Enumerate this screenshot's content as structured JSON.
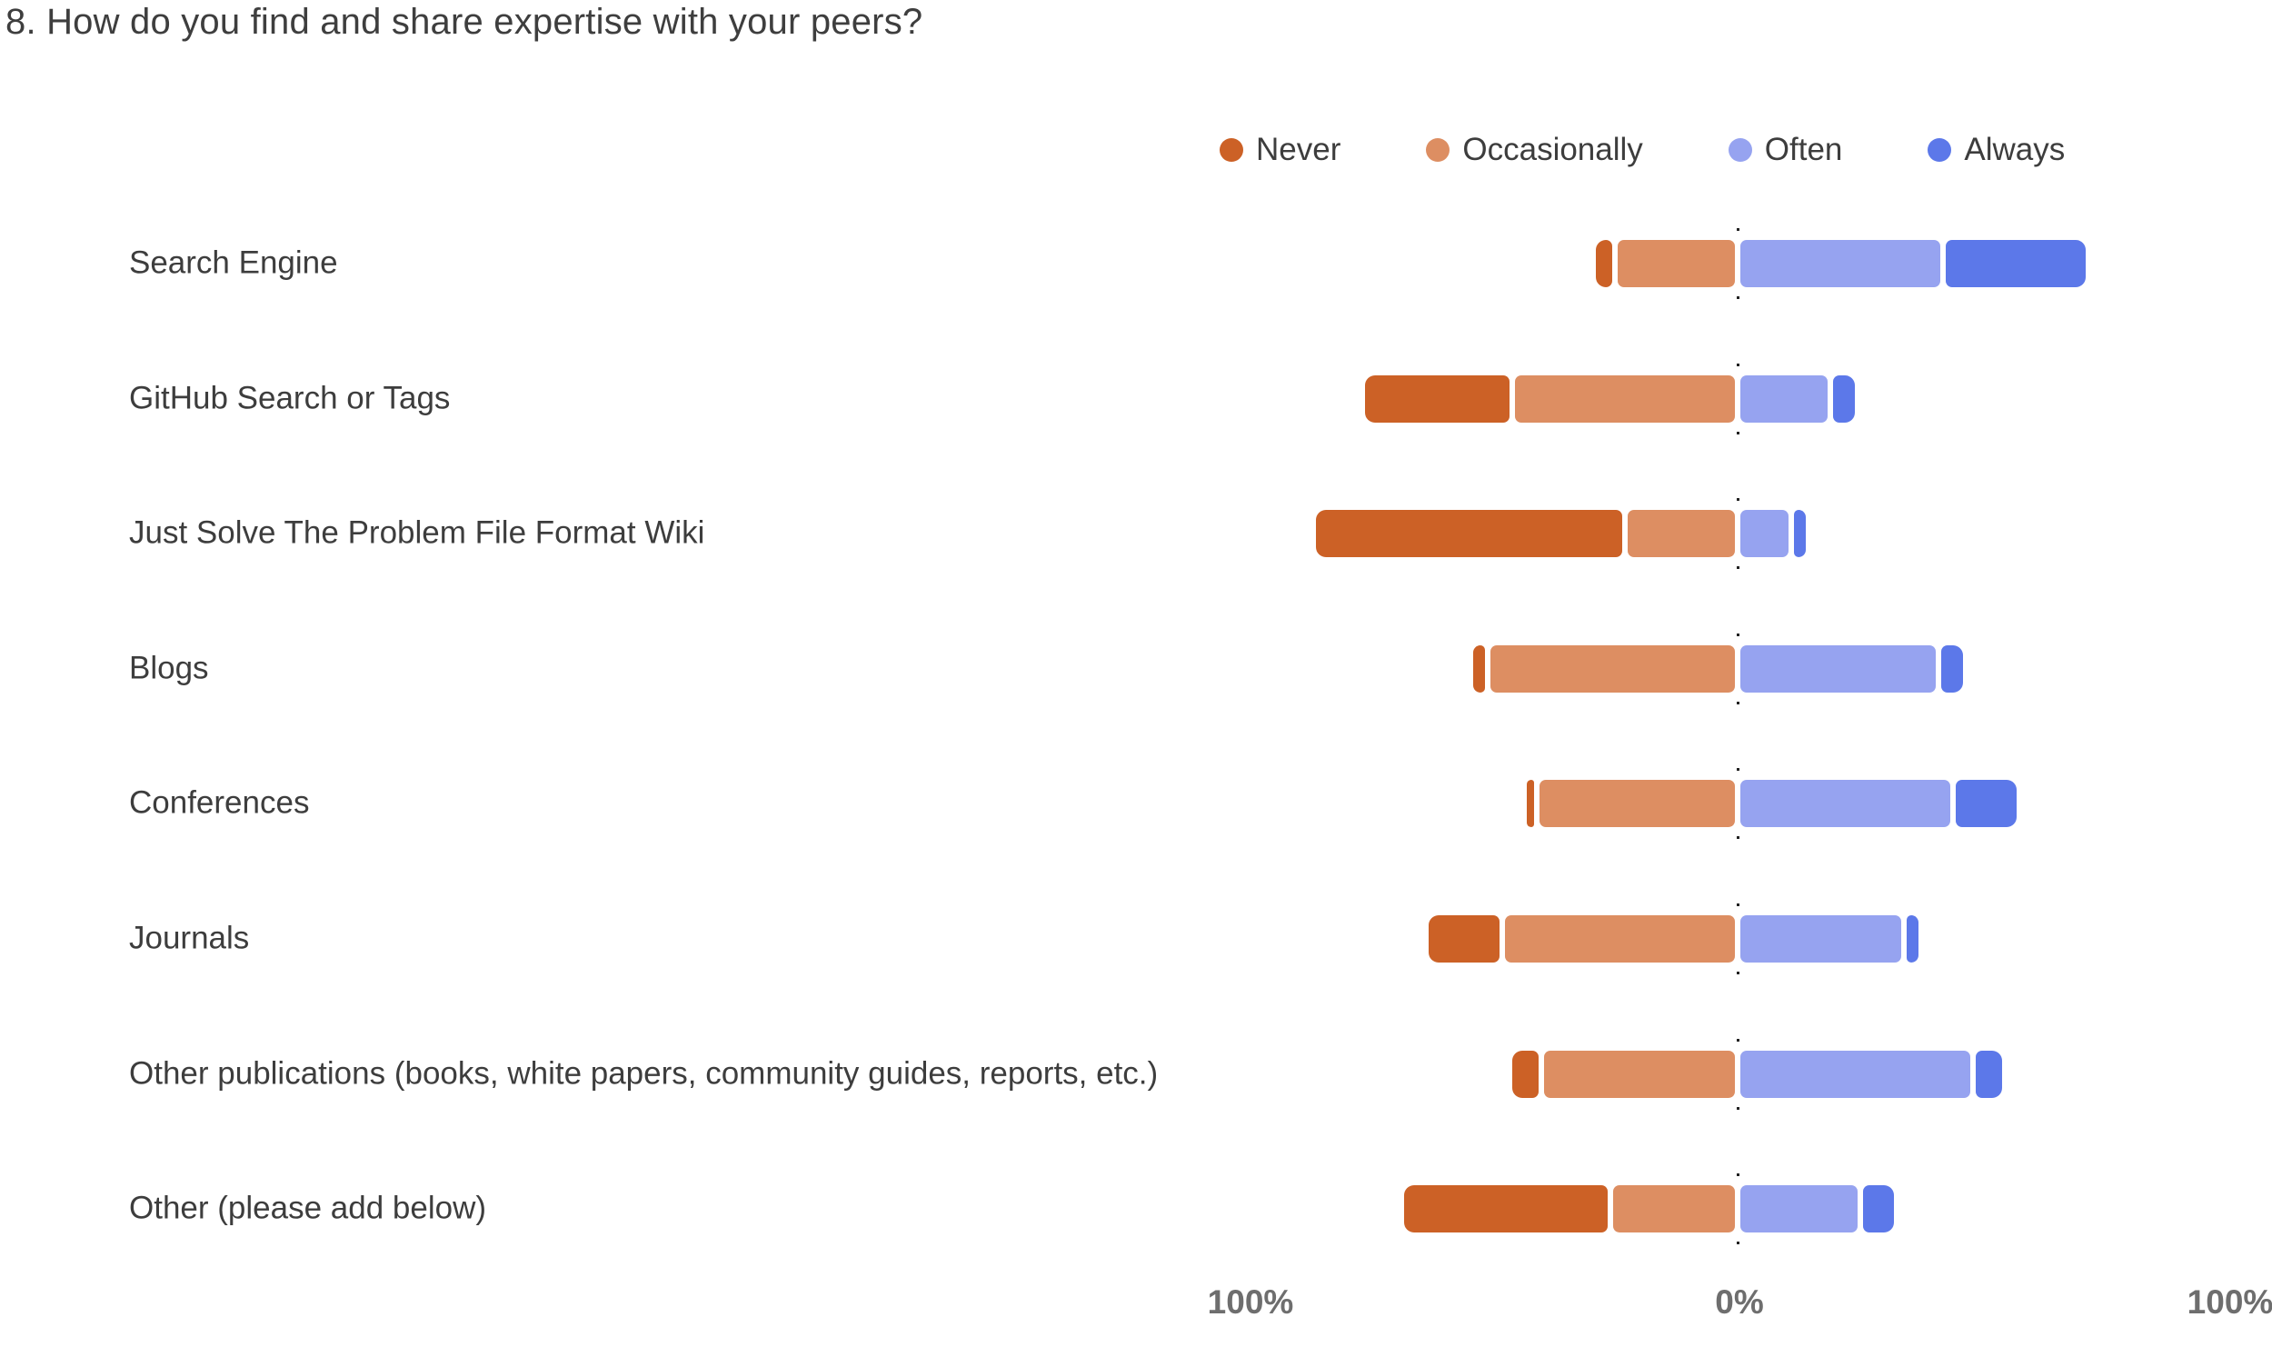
{
  "title": "8. How do you find and share expertise with your peers?",
  "chart_data": {
    "type": "bar",
    "subtype": "diverging-stacked-likert",
    "title": "8. How do you find and share expertise with your peers?",
    "unit": "percent",
    "grid": false,
    "zero_centered": true,
    "negative_side_series": [
      "Never",
      "Occasionally"
    ],
    "positive_side_series": [
      "Often",
      "Always"
    ],
    "legend_position": "top-right",
    "axis_ticks": [
      "100%",
      "0%",
      "100%"
    ],
    "xlabel": "",
    "ylabel": "",
    "categories": [
      "Search Engine",
      "GitHub Search or Tags",
      "Just Solve The Problem File Format Wiki",
      "Blogs",
      "Conferences",
      "Journals",
      "Other publications (books, white papers, community guides, reports, etc.)",
      "Other (please add below)"
    ],
    "series": [
      {
        "name": "Never",
        "color": "#cc6126",
        "values": [
          4,
          30,
          63,
          3,
          2,
          15,
          6,
          42
        ]
      },
      {
        "name": "Occasionally",
        "color": "#dd8e62",
        "values": [
          25,
          46,
          23,
          51,
          41,
          48,
          40,
          26
        ]
      },
      {
        "name": "Often",
        "color": "#96a3f0",
        "values": [
          42,
          19,
          11,
          41,
          44,
          34,
          48,
          25
        ]
      },
      {
        "name": "Always",
        "color": "#5c78e9",
        "values": [
          29,
          5,
          3,
          5,
          13,
          3,
          6,
          7
        ]
      }
    ]
  }
}
